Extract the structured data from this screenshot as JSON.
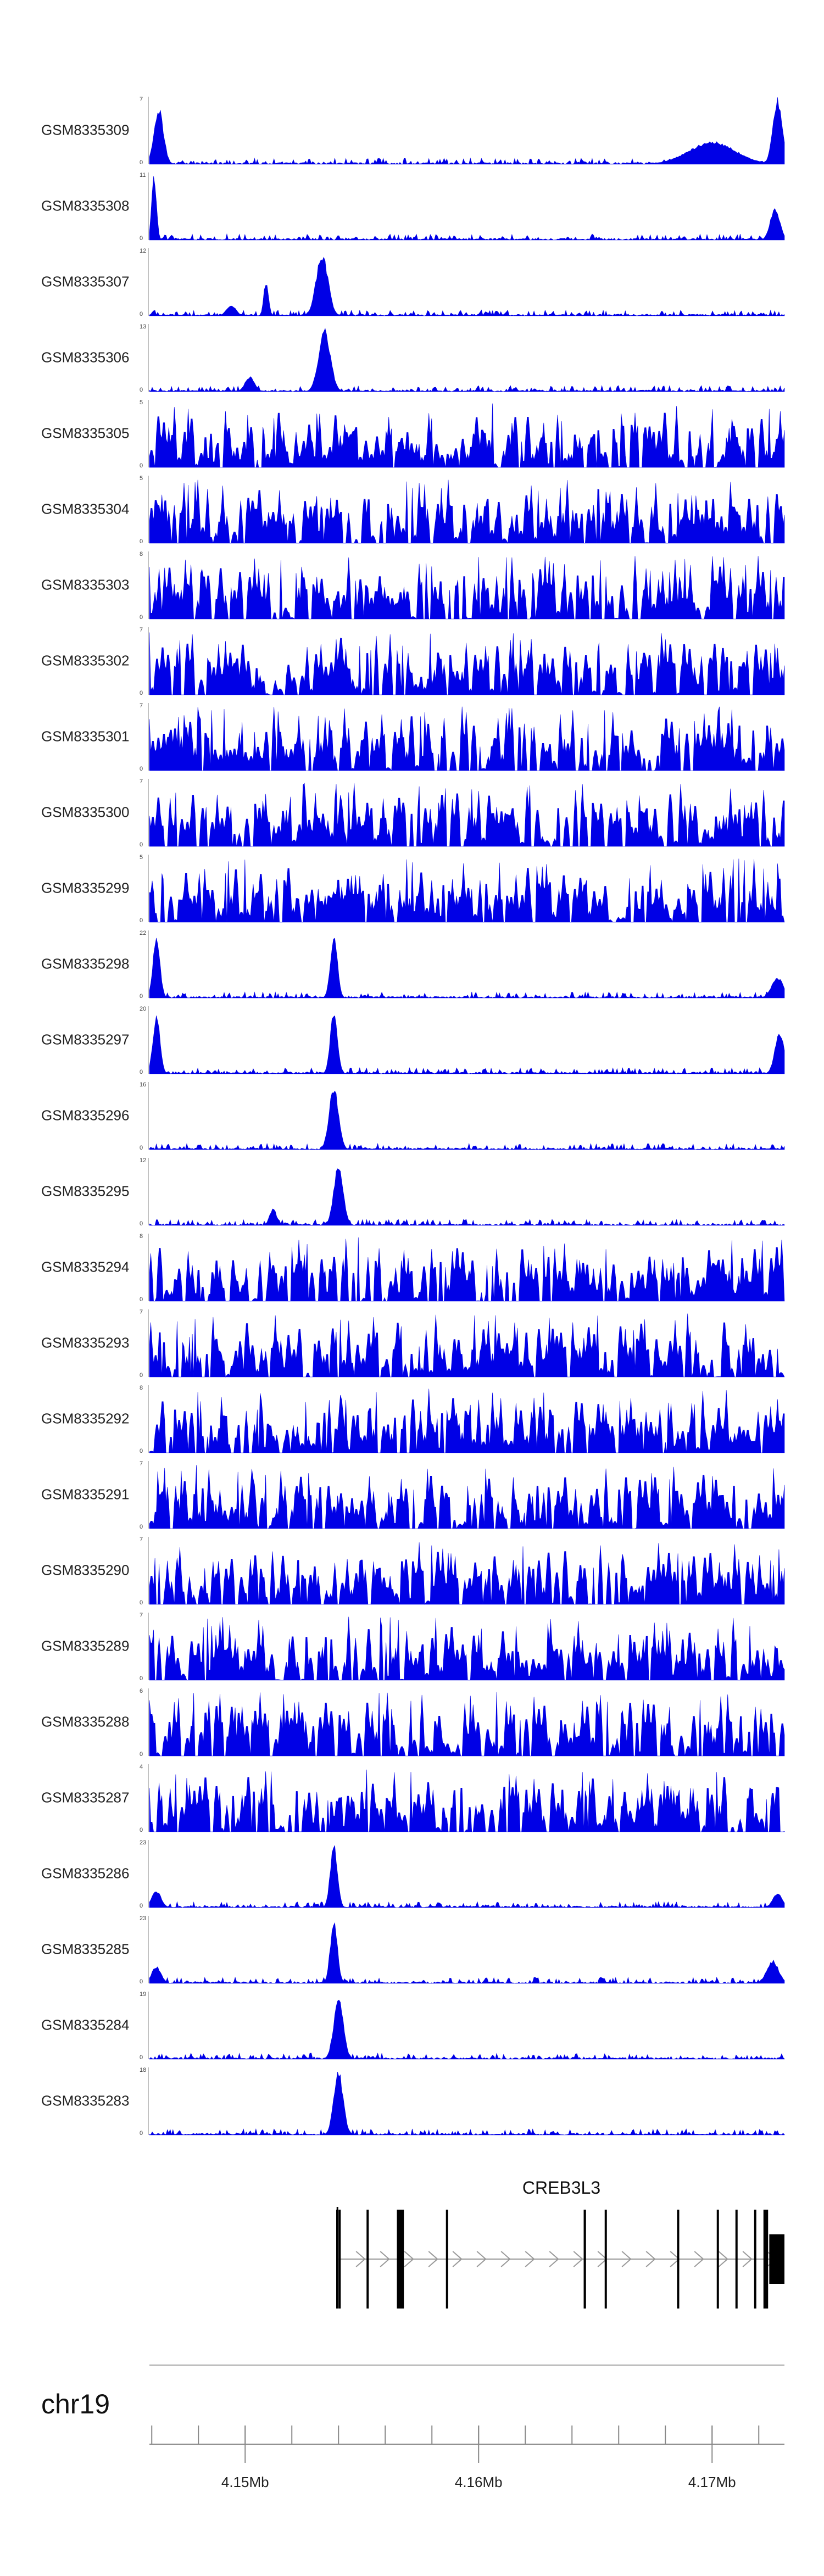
{
  "chart_data": {
    "type": "area",
    "genome": {
      "chromosome": "chr19",
      "x_range": [
        4.1459,
        4.1731
      ],
      "x_ticks": [
        {
          "value": 4.15,
          "label": "4.15Mb"
        },
        {
          "value": 4.16,
          "label": "4.16Mb"
        },
        {
          "value": 4.17,
          "label": "4.17Mb"
        }
      ],
      "minor_tick_step": 0.002
    },
    "colors": {
      "signal": "#0000e6",
      "gene": "#000000",
      "intron": "#999999",
      "axis": "#888888"
    },
    "tracks": [
      {
        "name": "GSM8335309",
        "ymax": 7,
        "profile": "edge",
        "peaks": [
          [
            4.1463,
            6.0,
            0.0004
          ],
          [
            4.1728,
            7.0,
            0.0004
          ],
          [
            4.17,
            2.4,
            0.002
          ]
        ]
      },
      {
        "name": "GSM8335308",
        "ymax": 11,
        "profile": "edge",
        "peaks": [
          [
            4.1461,
            10.8,
            0.0002
          ],
          [
            4.1727,
            5.5,
            0.0004
          ]
        ]
      },
      {
        "name": "GSM8335307",
        "ymax": 12,
        "profile": "peak",
        "peaks": [
          [
            4.1533,
            11.5,
            0.0005
          ],
          [
            4.1509,
            6.5,
            0.0002
          ],
          [
            4.1494,
            2.0,
            0.0004
          ]
        ]
      },
      {
        "name": "GSM8335306",
        "ymax": 13,
        "profile": "peak",
        "peaks": [
          [
            4.1534,
            12.5,
            0.0005
          ],
          [
            4.1502,
            3.0,
            0.0004
          ]
        ]
      },
      {
        "name": "GSM8335305",
        "ymax": 5,
        "profile": "noise",
        "peaks": []
      },
      {
        "name": "GSM8335304",
        "ymax": 5,
        "profile": "noise",
        "peaks": []
      },
      {
        "name": "GSM8335303",
        "ymax": 8,
        "profile": "noise",
        "peaks": []
      },
      {
        "name": "GSM8335302",
        "ymax": 7,
        "profile": "noise",
        "peaks": [
          [
            4.1541,
            6.5,
            0.0002
          ]
        ]
      },
      {
        "name": "GSM8335301",
        "ymax": 7,
        "profile": "noise",
        "peaks": []
      },
      {
        "name": "GSM8335300",
        "ymax": 7,
        "profile": "noise",
        "peaks": [
          [
            4.1541,
            5.5,
            0.0002
          ]
        ]
      },
      {
        "name": "GSM8335299",
        "ymax": 5,
        "profile": "noise",
        "peaks": []
      },
      {
        "name": "GSM8335298",
        "ymax": 22,
        "profile": "peak",
        "peaks": [
          [
            4.1538,
            21.0,
            0.0003
          ],
          [
            4.1462,
            20.0,
            0.0003
          ],
          [
            4.1728,
            7.0,
            0.0005
          ]
        ]
      },
      {
        "name": "GSM8335297",
        "ymax": 20,
        "profile": "peak",
        "peaks": [
          [
            4.1538,
            19.0,
            0.0003
          ],
          [
            4.1462,
            18.0,
            0.0003
          ],
          [
            4.1729,
            13.0,
            0.0004
          ]
        ]
      },
      {
        "name": "GSM8335296",
        "ymax": 16,
        "profile": "peak",
        "peaks": [
          [
            4.1538,
            15.5,
            0.0004
          ]
        ]
      },
      {
        "name": "GSM8335295",
        "ymax": 12,
        "profile": "peak",
        "peaks": [
          [
            4.154,
            11.0,
            0.0004
          ],
          [
            4.1512,
            3.0,
            0.0003
          ]
        ]
      },
      {
        "name": "GSM8335294",
        "ymax": 8,
        "profile": "noise",
        "peaks": []
      },
      {
        "name": "GSM8335293",
        "ymax": 7,
        "profile": "noise",
        "peaks": []
      },
      {
        "name": "GSM8335292",
        "ymax": 8,
        "profile": "noise",
        "peaks": [
          [
            4.1541,
            7.5,
            0.0002
          ]
        ]
      },
      {
        "name": "GSM8335291",
        "ymax": 7,
        "profile": "noise",
        "peaks": [
          [
            4.1503,
            6.5,
            0.0002
          ]
        ]
      },
      {
        "name": "GSM8335290",
        "ymax": 7,
        "profile": "noise",
        "peaks": []
      },
      {
        "name": "GSM8335289",
        "ymax": 7,
        "profile": "noise",
        "peaks": []
      },
      {
        "name": "GSM8335288",
        "ymax": 6,
        "profile": "noise",
        "peaks": []
      },
      {
        "name": "GSM8335287",
        "ymax": 4,
        "profile": "noise",
        "peaks": []
      },
      {
        "name": "GSM8335286",
        "ymax": 23,
        "profile": "peak",
        "peaks": [
          [
            4.1538,
            22.5,
            0.0003
          ],
          [
            4.1462,
            6.0,
            0.0004
          ],
          [
            4.1728,
            5.0,
            0.0004
          ]
        ]
      },
      {
        "name": "GSM8335285",
        "ymax": 23,
        "profile": "peak",
        "peaks": [
          [
            4.1538,
            22.5,
            0.0003
          ],
          [
            4.1462,
            6.0,
            0.0004
          ],
          [
            4.1726,
            8.0,
            0.0005
          ]
        ]
      },
      {
        "name": "GSM8335284",
        "ymax": 19,
        "profile": "peak",
        "peaks": [
          [
            4.154,
            18.5,
            0.0004
          ]
        ]
      },
      {
        "name": "GSM8335283",
        "ymax": 18,
        "profile": "peak",
        "peaks": [
          [
            4.154,
            17.5,
            0.0004
          ]
        ]
      }
    ],
    "gene": {
      "name": "CREB3L3",
      "start": 4.154,
      "end": 4.1731,
      "strand": "+",
      "exons": [
        [
          4.1539,
          4.15395
        ],
        [
          4.154,
          4.15405
        ],
        [
          4.1552,
          4.15525
        ],
        [
          4.1565,
          4.1568
        ],
        [
          4.1586,
          4.15865
        ],
        [
          4.1645,
          4.1646
        ],
        [
          4.1654,
          4.16545
        ],
        [
          4.1685,
          4.16855
        ],
        [
          4.1702,
          4.17025
        ],
        [
          4.171,
          4.17105
        ],
        [
          4.1718,
          4.17185
        ],
        [
          4.1722,
          4.1724
        ],
        [
          4.17245,
          4.1731
        ]
      ]
    }
  }
}
